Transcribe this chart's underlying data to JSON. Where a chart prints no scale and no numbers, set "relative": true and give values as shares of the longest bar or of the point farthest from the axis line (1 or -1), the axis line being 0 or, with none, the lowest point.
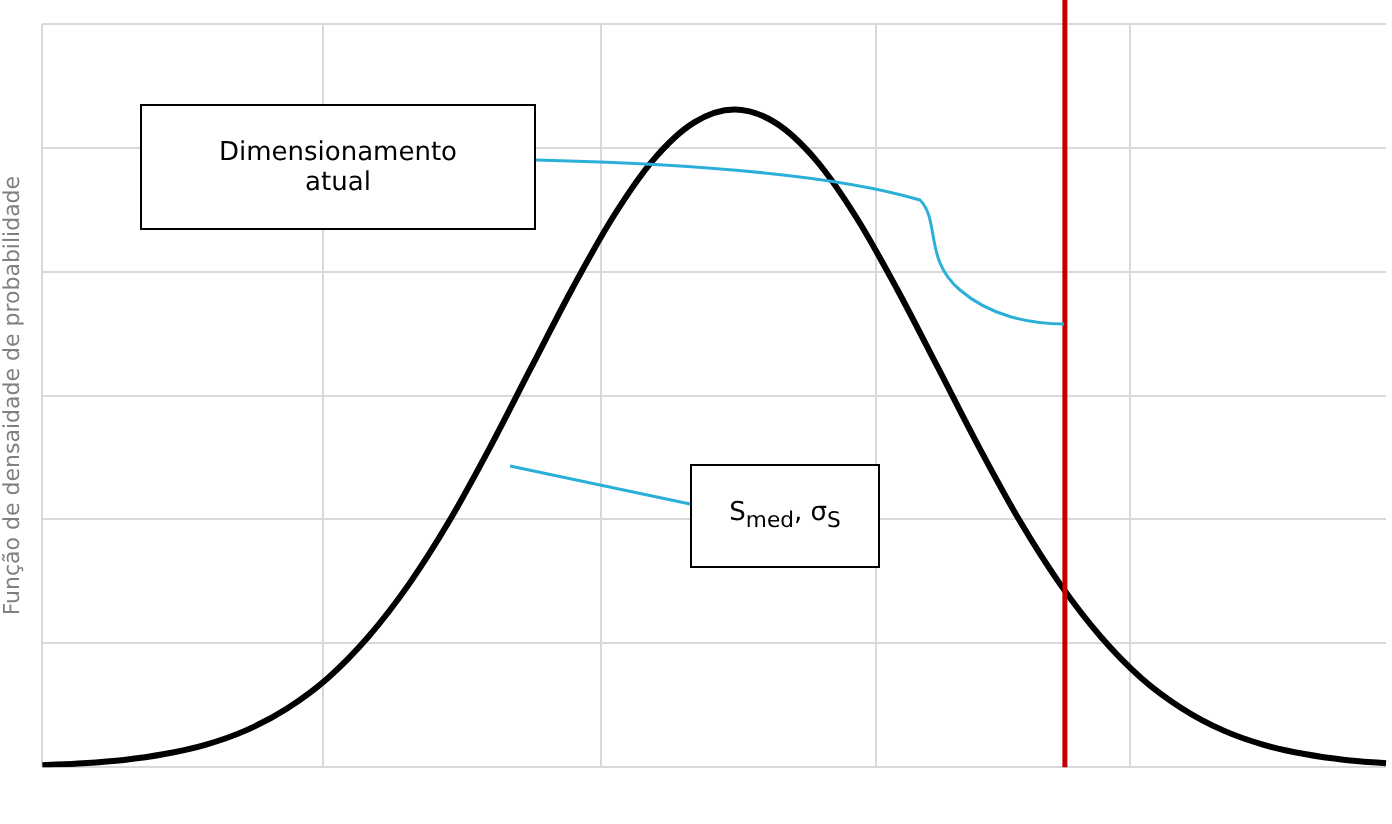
{
  "chart_data": {
    "type": "line",
    "relative": true,
    "ylabel": "Função de densaidade de probabilidade",
    "categories": [
      null,
      null,
      null,
      null,
      null,
      null,
      null,
      null,
      null,
      null,
      null,
      null,
      null,
      null,
      null,
      null,
      null,
      null,
      null,
      null,
      null,
      null,
      null,
      null,
      null,
      null,
      null,
      null,
      null,
      null,
      null,
      null,
      null,
      null
    ],
    "series": [
      {
        "color": "#000000",
        "values": [
          0.003,
          0.006,
          0.011,
          0.02,
          0.034,
          0.056,
          0.089,
          0.135,
          0.198,
          0.278,
          0.375,
          0.487,
          0.607,
          0.726,
          0.835,
          0.923,
          0.98,
          1,
          0.98,
          0.923,
          0.835,
          0.726,
          0.607,
          0.487,
          0.375,
          0.278,
          0.198,
          0.135,
          0.089,
          0.056,
          0.034,
          0.02,
          0.011,
          0.006
        ]
      }
    ],
    "annotations": [
      "Dimensionamento atual",
      "S$_{med}$, σ$_{S}$"
    ],
    "grid": true,
    "legend": false,
    "marker": "none",
    "line_style": "solid"
  }
}
